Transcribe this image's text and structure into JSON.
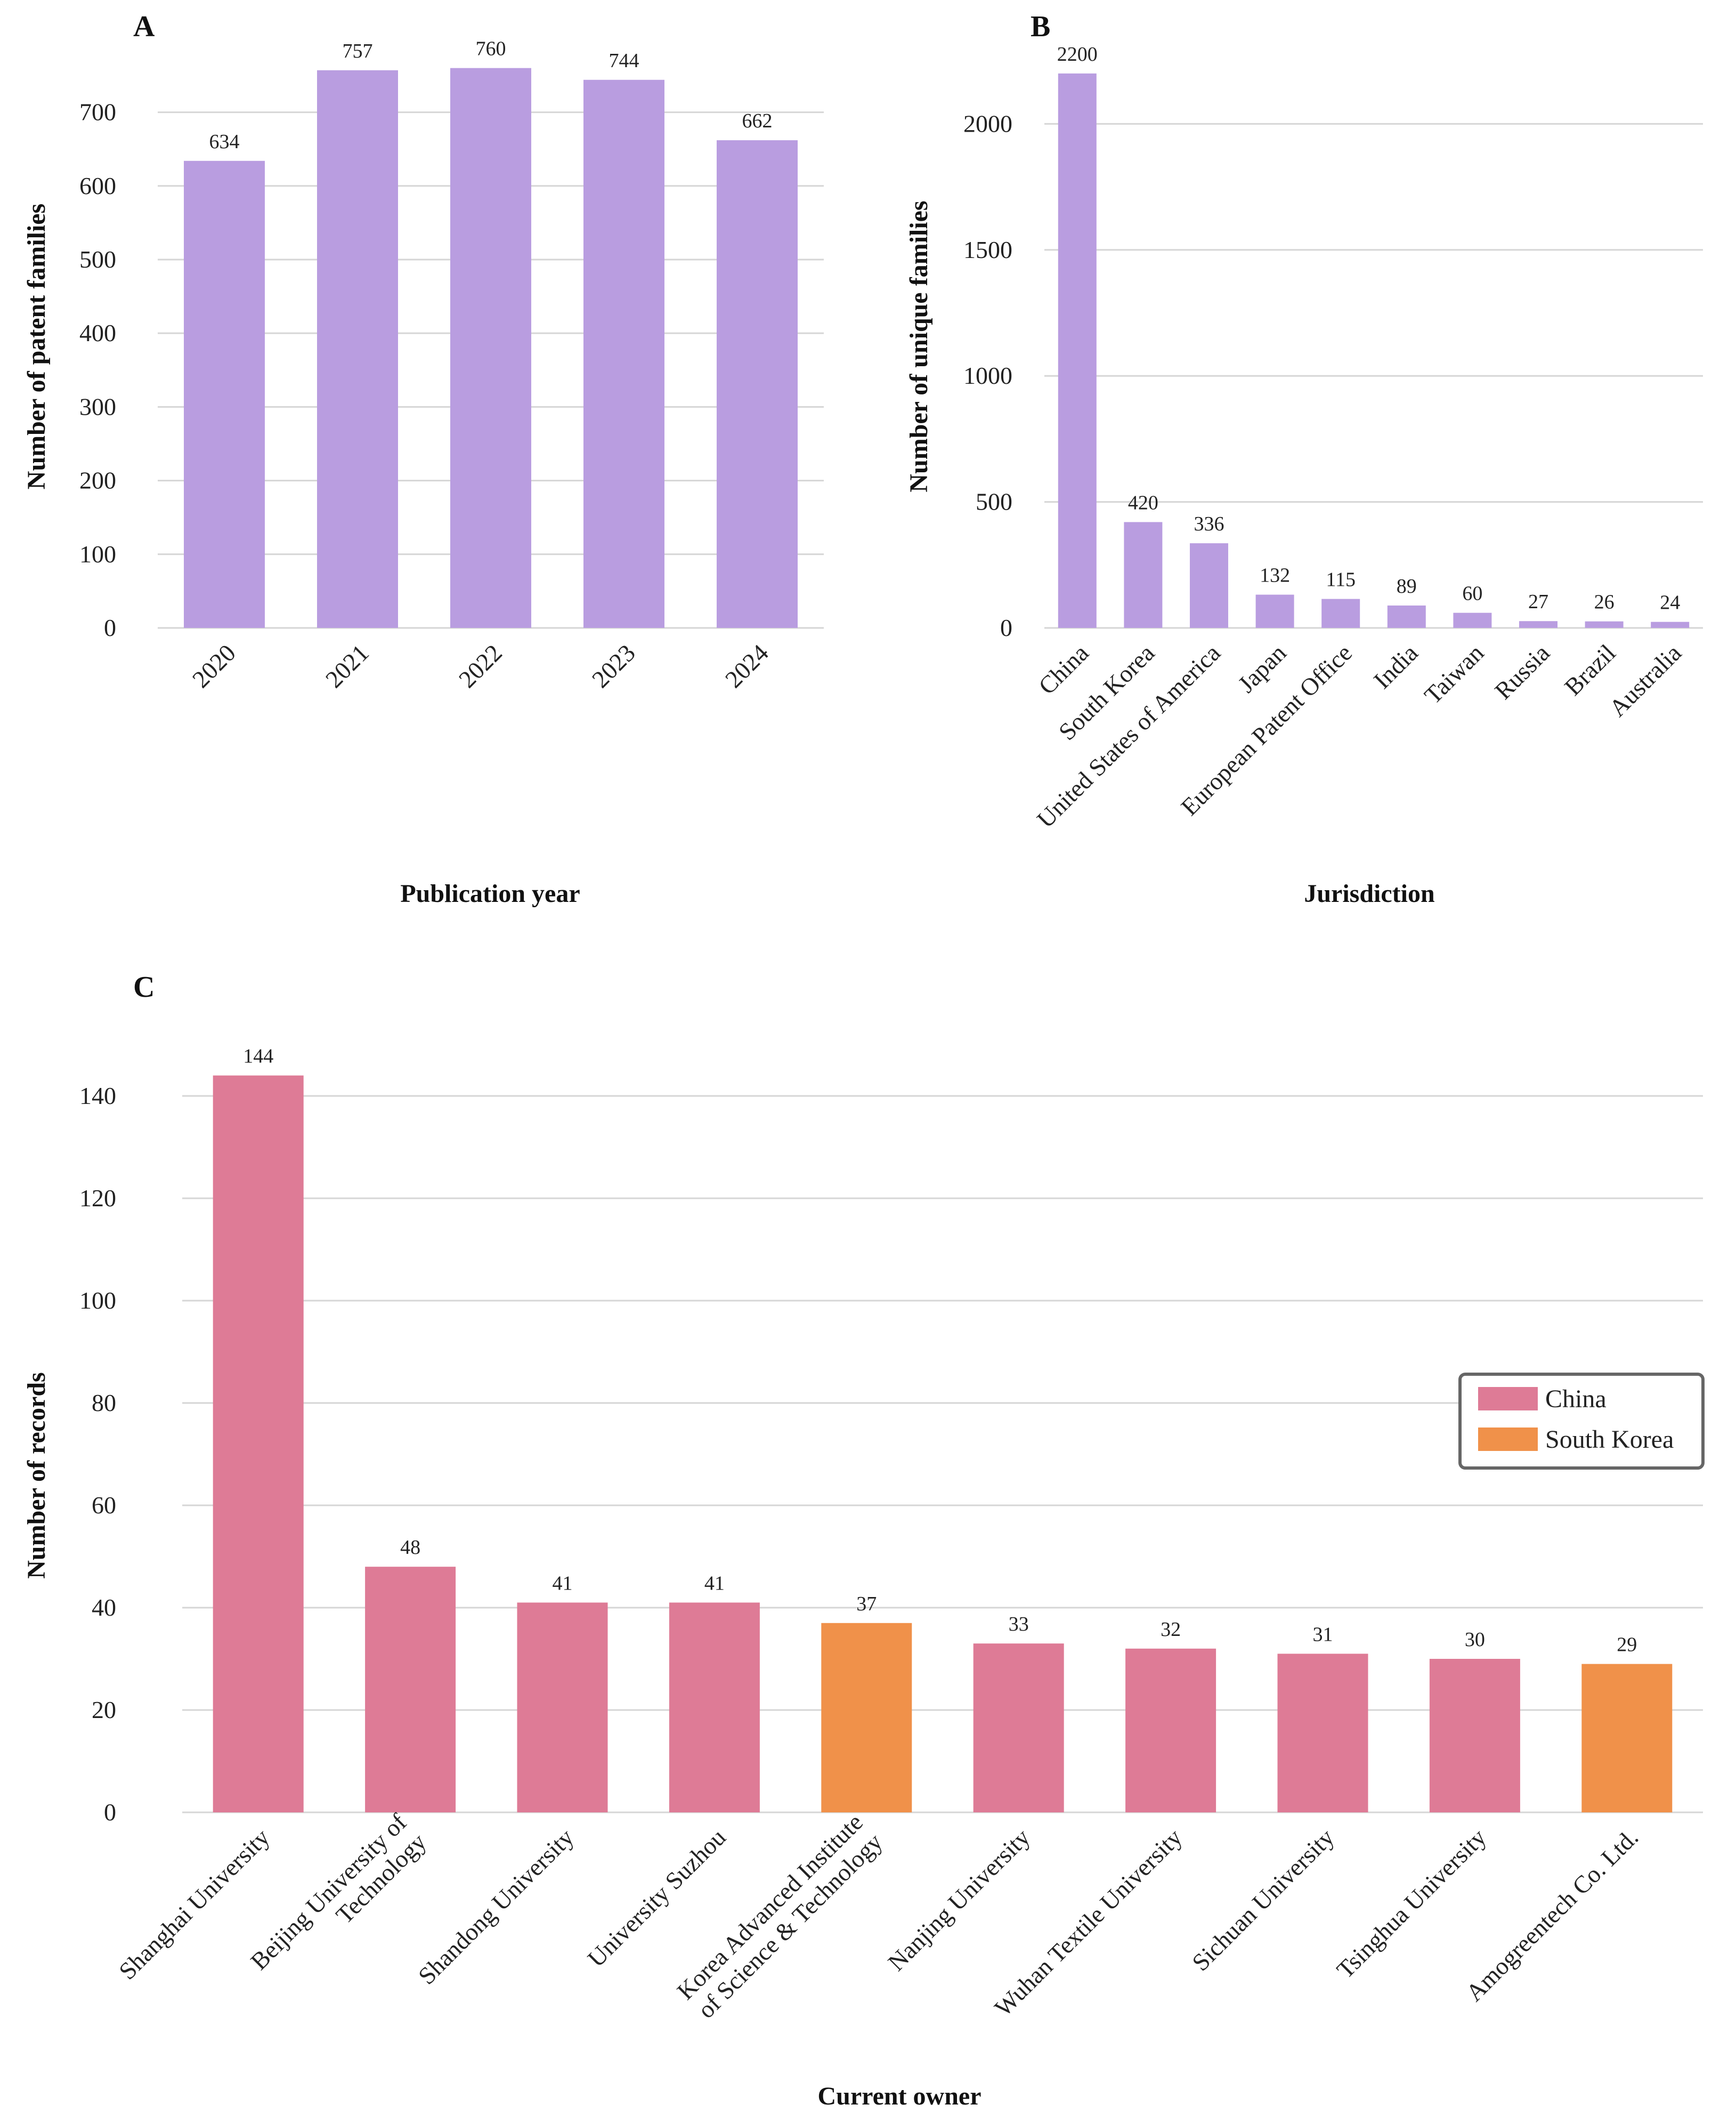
{
  "colors": {
    "purple": "#b99de0",
    "china": "#de7b96",
    "south_korea": "#f0914a",
    "grid": "#d6d6d6"
  },
  "chart_data": [
    {
      "panel": "A",
      "type": "bar",
      "categories": [
        "2020",
        "2021",
        "2022",
        "2023",
        "2024"
      ],
      "values": [
        634,
        757,
        760,
        744,
        662
      ],
      "data_labels": [
        "634",
        "757",
        "760",
        "744",
        "662"
      ],
      "xlabel": "Publication year",
      "ylabel": "Number of patent families",
      "ylim": [
        0,
        780
      ],
      "yticks": [
        0,
        100,
        200,
        300,
        400,
        500,
        600,
        700
      ],
      "grid": true
    },
    {
      "panel": "B",
      "type": "bar",
      "categories": [
        "China",
        "South Korea",
        "United States of America",
        "Japan",
        "European Patent Office",
        "India",
        "Taiwan",
        "Russia",
        "Brazil",
        "Australia"
      ],
      "values": [
        2200,
        420,
        336,
        132,
        115,
        89,
        60,
        27,
        26,
        24
      ],
      "data_labels": [
        "2200",
        "420",
        "336",
        "132",
        "115",
        "89",
        "60",
        "27",
        "26",
        "24"
      ],
      "xlabel": "Jurisdiction",
      "ylabel": "Number of unique families",
      "ylim": [
        0,
        2280
      ],
      "yticks": [
        0,
        500,
        1000,
        1500,
        2000
      ],
      "grid": true
    },
    {
      "panel": "C",
      "type": "bar",
      "categories": [
        "Shanghai University",
        "Beijing University of\nTechnology",
        "Shandong University",
        "University Suzhou",
        "Korea Advanced Institute\nof Science & Technology",
        "Nanjing University",
        "Wuhan Textile University",
        "Sichuan University",
        "Tsinghua University",
        "Amogreentech Co. Ltd."
      ],
      "values": [
        144,
        48,
        41,
        41,
        37,
        33,
        32,
        31,
        30,
        29
      ],
      "data_labels": [
        "144",
        "48",
        "41",
        "41",
        "37",
        "33",
        "32",
        "31",
        "30",
        "29"
      ],
      "groups": [
        "China",
        "China",
        "China",
        "China",
        "South Korea",
        "China",
        "China",
        "China",
        "China",
        "South Korea"
      ],
      "xlabel": "Current owner",
      "ylabel": "Number of records",
      "ylim": [
        0,
        150
      ],
      "yticks": [
        0,
        20,
        40,
        60,
        80,
        100,
        120,
        140
      ],
      "grid": true,
      "legend": {
        "placement": "right",
        "entries": [
          "China",
          "South Korea"
        ]
      }
    }
  ]
}
